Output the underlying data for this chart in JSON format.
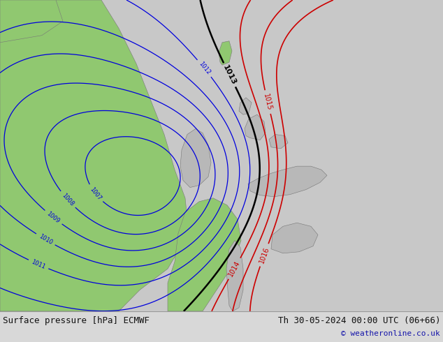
{
  "title_left": "Surface pressure [hPa] ECMWF",
  "title_right": "Th 30-05-2024 00:00 UTC (06+66)",
  "copyright": "© weatheronline.co.uk",
  "bg_color": "#c8c8c8",
  "land_color_green": "#90c870",
  "land_color_gray": "#b8b8b8",
  "contour_blue": "#0000dd",
  "contour_black": "#000000",
  "contour_red": "#cc0000",
  "figsize": [
    6.34,
    4.9
  ],
  "dpi": 100
}
